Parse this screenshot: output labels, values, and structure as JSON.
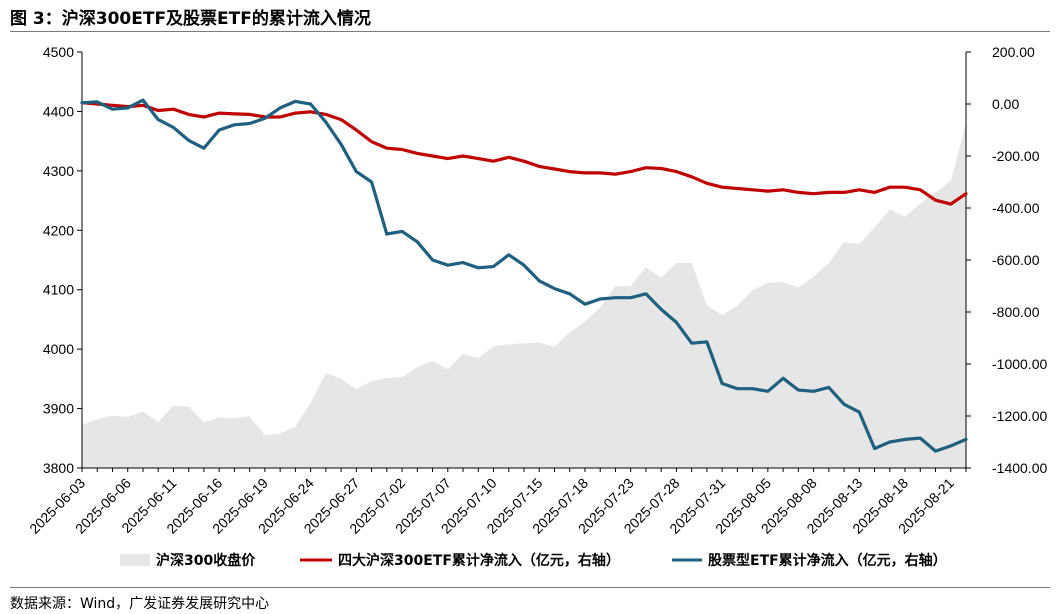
{
  "figure_title": "图 3：沪深300ETF及股票ETF的累计流入情况",
  "source_note": "数据来源：Wind，广发证券发展研究中心",
  "colors": {
    "index_area": "#e6e6e6",
    "hs300_etf": "#c00000",
    "stock_etf": "#1f5f7f"
  },
  "chart_data": {
    "type": "line",
    "x": [
      "2025-06-03",
      "2025-06-04",
      "2025-06-05",
      "2025-06-06",
      "2025-06-09",
      "2025-06-10",
      "2025-06-11",
      "2025-06-12",
      "2025-06-13",
      "2025-06-16",
      "2025-06-17",
      "2025-06-18",
      "2025-06-19",
      "2025-06-20",
      "2025-06-23",
      "2025-06-24",
      "2025-06-25",
      "2025-06-26",
      "2025-06-27",
      "2025-06-30",
      "2025-07-01",
      "2025-07-02",
      "2025-07-03",
      "2025-07-04",
      "2025-07-07",
      "2025-07-08",
      "2025-07-09",
      "2025-07-10",
      "2025-07-11",
      "2025-07-14",
      "2025-07-15",
      "2025-07-16",
      "2025-07-17",
      "2025-07-18",
      "2025-07-21",
      "2025-07-22",
      "2025-07-23",
      "2025-07-24",
      "2025-07-25",
      "2025-07-28",
      "2025-07-29",
      "2025-07-30",
      "2025-07-31",
      "2025-08-01",
      "2025-08-04",
      "2025-08-05",
      "2025-08-06",
      "2025-08-07",
      "2025-08-08",
      "2025-08-11",
      "2025-08-12",
      "2025-08-13",
      "2025-08-14",
      "2025-08-15",
      "2025-08-18",
      "2025-08-19",
      "2025-08-20",
      "2025-08-21",
      "2025-08-22"
    ],
    "x_tick_labels": [
      "2025-06-03",
      "2025-06-06",
      "2025-06-11",
      "2025-06-16",
      "2025-06-19",
      "2025-06-24",
      "2025-06-27",
      "2025-07-02",
      "2025-07-07",
      "2025-07-10",
      "2025-07-15",
      "2025-07-18",
      "2025-07-23",
      "2025-07-28",
      "2025-07-31",
      "2025-08-05",
      "2025-08-08",
      "2025-08-13",
      "2025-08-18",
      "2025-08-21"
    ],
    "y_left": {
      "lim": [
        3800,
        4500
      ],
      "ticks": [
        3800,
        3900,
        4000,
        4100,
        4200,
        4300,
        4400,
        4500
      ]
    },
    "y_right": {
      "lim": [
        -1400,
        200
      ],
      "ticks": [
        "200.00",
        "0.00",
        "-200.00",
        "-400.00",
        "-600.00",
        "-800.00",
        "-1000.00",
        "-1200.00",
        "-1400.00"
      ]
    },
    "series": [
      {
        "name": "沪深300收盘价",
        "type": "area",
        "axis": "left",
        "values": [
          3873,
          3882,
          3888,
          3886,
          3895,
          3877,
          3905,
          3903,
          3877,
          3885,
          3884,
          3887,
          3855,
          3858,
          3870,
          3910,
          3960,
          3950,
          3933,
          3946,
          3952,
          3953,
          3970,
          3980,
          3966,
          3992,
          3985,
          4005,
          4008,
          4010,
          4011,
          4004,
          4028,
          4046,
          4070,
          4106,
          4106,
          4138,
          4120,
          4145,
          4145,
          4074,
          4057,
          4073,
          4099,
          4112,
          4113,
          4104,
          4122,
          4145,
          4180,
          4177,
          4205,
          4235,
          4223,
          4245,
          4263,
          4283,
          4380
        ]
      },
      {
        "name": "四大沪深300ETF累计净流入（亿元，右轴）",
        "type": "line",
        "axis": "right",
        "values": [
          5,
          0,
          -5,
          -10,
          -5,
          -25,
          -20,
          -40,
          -50,
          -35,
          -38,
          -40,
          -50,
          -50,
          -35,
          -30,
          -40,
          -60,
          -100,
          -145,
          -170,
          -175,
          -190,
          -200,
          -210,
          -200,
          -210,
          -220,
          -205,
          -220,
          -240,
          -250,
          -260,
          -265,
          -265,
          -270,
          -260,
          -245,
          -248,
          -260,
          -280,
          -305,
          -320,
          -325,
          -330,
          -335,
          -330,
          -340,
          -345,
          -340,
          -340,
          -330,
          -340,
          -320,
          -320,
          -330,
          -370,
          -385,
          -345
        ]
      },
      {
        "name": "股票型ETF累计净流入（亿元，右轴）",
        "type": "line",
        "axis": "right",
        "values": [
          5,
          8,
          -20,
          -15,
          15,
          -60,
          -90,
          -140,
          -170,
          -100,
          -80,
          -75,
          -55,
          -15,
          10,
          0,
          -70,
          -155,
          -260,
          -300,
          -500,
          -490,
          -530,
          -600,
          -620,
          -610,
          -630,
          -625,
          -580,
          -620,
          -680,
          -710,
          -730,
          -770,
          -750,
          -745,
          -745,
          -730,
          -790,
          -840,
          -920,
          -915,
          -1075,
          -1095,
          -1095,
          -1105,
          -1055,
          -1100,
          -1105,
          -1090,
          -1155,
          -1185,
          -1325,
          -1300,
          -1290,
          -1285,
          -1335,
          -1315,
          -1290
        ]
      }
    ],
    "legend": {
      "position": "bottom"
    }
  }
}
